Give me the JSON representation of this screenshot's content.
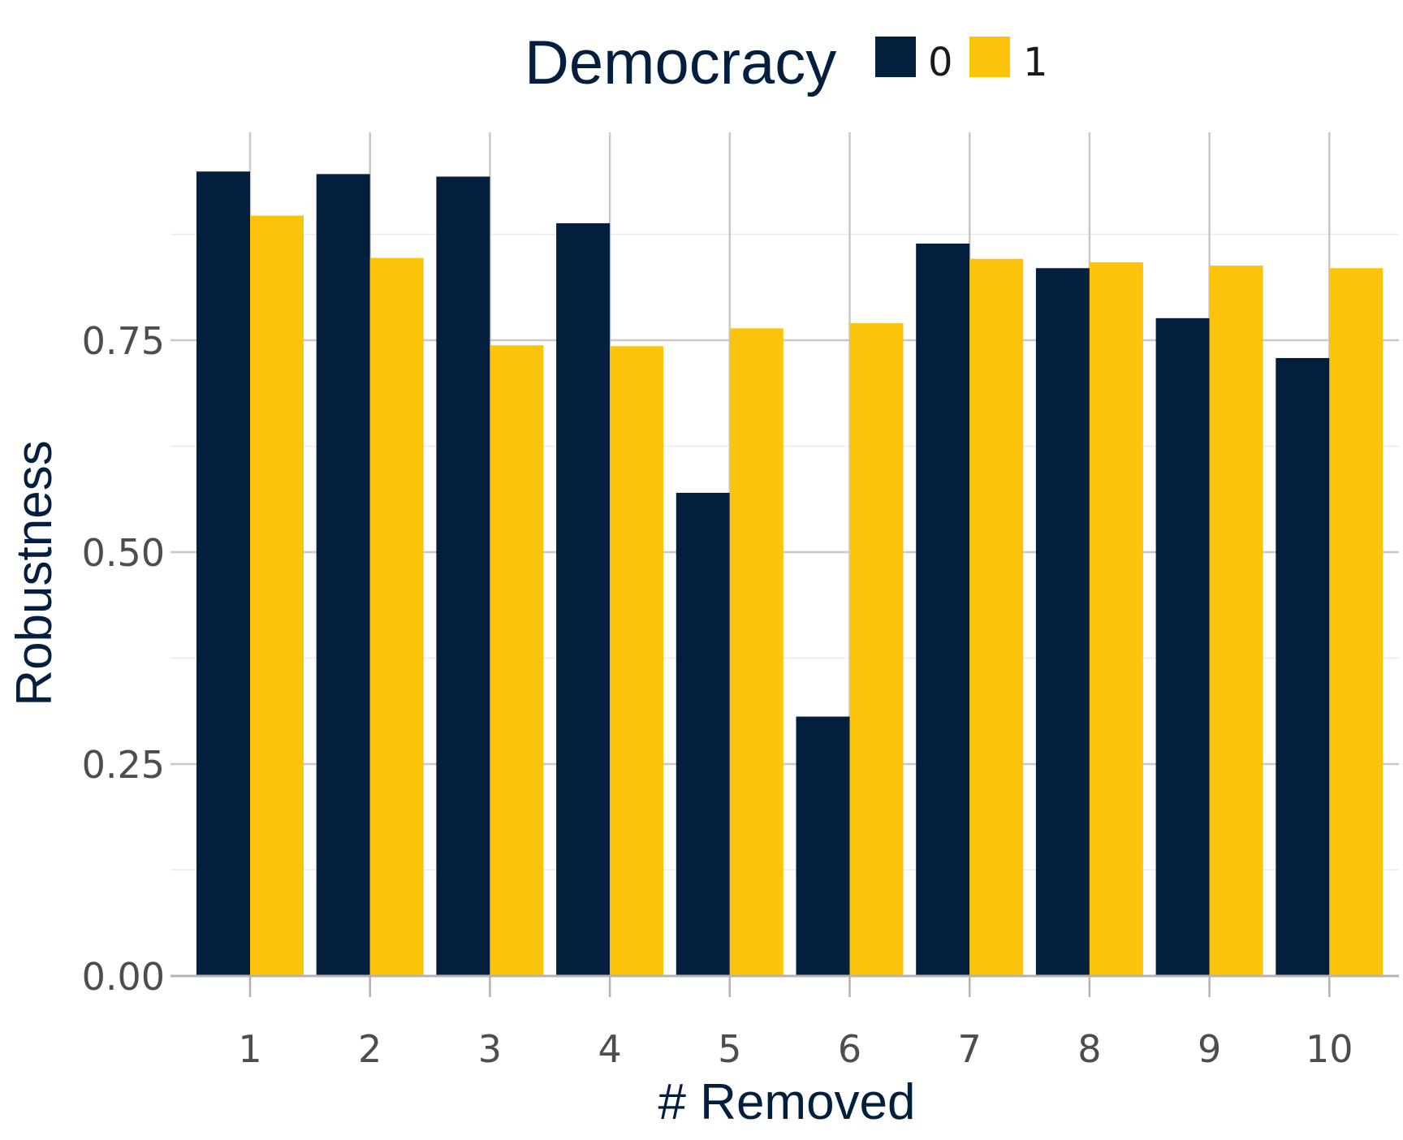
{
  "chart_data": {
    "type": "bar",
    "xlabel": "# Removed",
    "ylabel": "Robustness",
    "categories": [
      "1",
      "2",
      "3",
      "4",
      "5",
      "6",
      "7",
      "8",
      "9",
      "10"
    ],
    "series": [
      {
        "name": "0",
        "color": "#041e3e",
        "values": [
          0.949,
          0.946,
          0.943,
          0.888,
          0.57,
          0.306,
          0.864,
          0.835,
          0.776,
          0.729
        ]
      },
      {
        "name": "1",
        "color": "#fcc30b",
        "values": [
          0.897,
          0.847,
          0.744,
          0.743,
          0.764,
          0.77,
          0.846,
          0.842,
          0.838,
          0.835
        ]
      }
    ],
    "ylim": [
      0,
      1
    ],
    "yticks": [
      "0.00",
      "0.25",
      "0.50",
      "0.75"
    ],
    "ytick_values": [
      0,
      0.25,
      0.5,
      0.75
    ],
    "grid": true,
    "legend": {
      "title": "Democracy",
      "placement": "top"
    }
  }
}
